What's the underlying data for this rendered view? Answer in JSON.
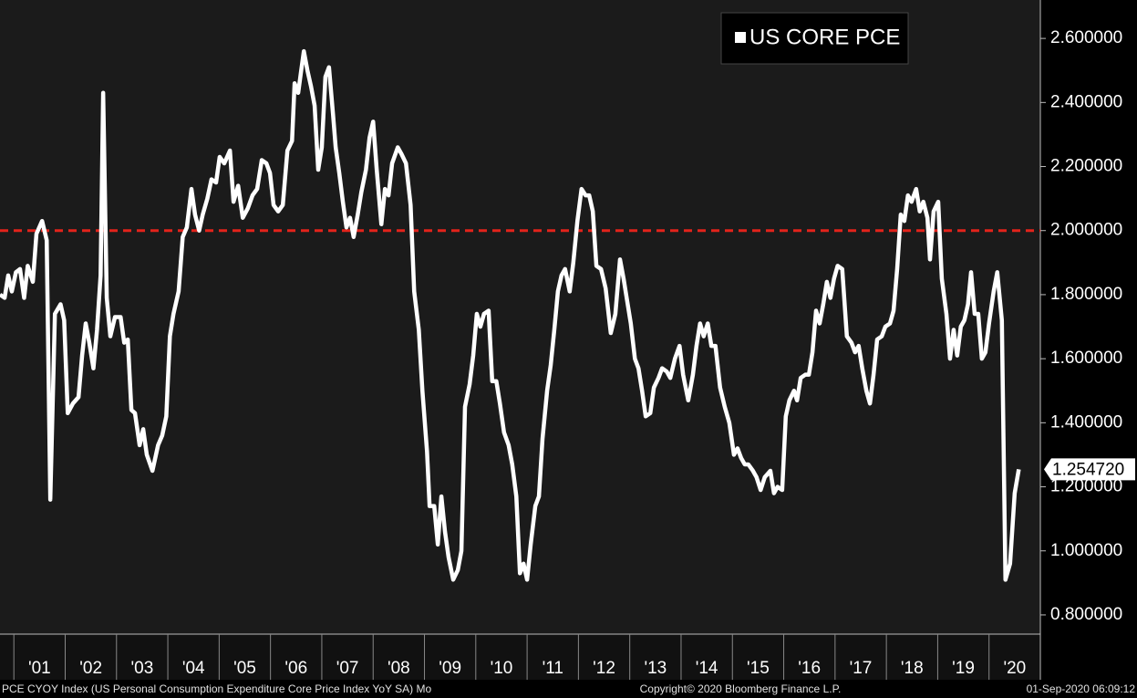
{
  "chart_data": {
    "type": "line",
    "legend_label": "US CORE PCE",
    "x": [
      2000.73,
      2000.82,
      2000.89,
      2000.96,
      2001.04,
      2001.12,
      2001.2,
      2001.27,
      2001.37,
      2001.44,
      2001.55,
      2001.64,
      2001.71,
      2001.8,
      2001.91,
      2001.98,
      2002.05,
      2002.15,
      2002.26,
      2002.33,
      2002.4,
      2002.47,
      2002.55,
      2002.62,
      2002.69,
      2002.74,
      2002.81,
      2002.88,
      2002.97,
      2003.08,
      2003.15,
      2003.22,
      2003.29,
      2003.36,
      2003.45,
      2003.52,
      2003.59,
      2003.7,
      2003.81,
      2003.89,
      2003.97,
      2004.04,
      2004.11,
      2004.21,
      2004.29,
      2004.37,
      2004.46,
      2004.53,
      2004.61,
      2004.68,
      2004.77,
      2004.85,
      2004.94,
      2005.01,
      2005.1,
      2005.21,
      2005.28,
      2005.37,
      2005.46,
      2005.56,
      2005.65,
      2005.74,
      2005.83,
      2005.92,
      2005.99,
      2006.06,
      2006.15,
      2006.24,
      2006.33,
      2006.42,
      2006.47,
      2006.54,
      2006.59,
      2006.65,
      2006.72,
      2006.79,
      2006.86,
      2006.93,
      2007.0,
      2007.07,
      2007.14,
      2007.22,
      2007.27,
      2007.34,
      2007.41,
      2007.48,
      2007.55,
      2007.62,
      2007.7,
      2007.77,
      2007.86,
      2007.93,
      2008.0,
      2008.07,
      2008.16,
      2008.23,
      2008.3,
      2008.37,
      2008.48,
      2008.55,
      2008.64,
      2008.73,
      2008.8,
      2008.89,
      2008.96,
      2009.05,
      2009.1,
      2009.19,
      2009.26,
      2009.33,
      2009.4,
      2009.47,
      2009.56,
      2009.65,
      2009.72,
      2009.79,
      2009.88,
      2009.95,
      2010.02,
      2010.09,
      2010.16,
      2010.25,
      2010.32,
      2010.4,
      2010.47,
      2010.55,
      2010.64,
      2010.71,
      2010.79,
      2010.86,
      2010.93,
      2011.0,
      2011.07,
      2011.16,
      2011.23,
      2011.3,
      2011.39,
      2011.46,
      2011.53,
      2011.6,
      2011.67,
      2011.74,
      2011.83,
      2011.9,
      2011.98,
      2012.06,
      2012.14,
      2012.21,
      2012.28,
      2012.35,
      2012.44,
      2012.53,
      2012.63,
      2012.72,
      2012.81,
      2012.88,
      2012.95,
      2013.02,
      2013.1,
      2013.17,
      2013.24,
      2013.31,
      2013.4,
      2013.47,
      2013.56,
      2013.63,
      2013.72,
      2013.79,
      2013.88,
      2013.97,
      2014.04,
      2014.14,
      2014.23,
      2014.3,
      2014.37,
      2014.44,
      2014.52,
      2014.59,
      2014.67,
      2014.76,
      2014.85,
      2014.94,
      2015.03,
      2015.1,
      2015.17,
      2015.24,
      2015.31,
      2015.4,
      2015.47,
      2015.55,
      2015.63,
      2015.74,
      2015.81,
      2015.88,
      2015.97,
      2016.04,
      2016.11,
      2016.2,
      2016.26,
      2016.33,
      2016.42,
      2016.49,
      2016.56,
      2016.63,
      2016.7,
      2016.77,
      2016.84,
      2016.91,
      2016.98,
      2017.05,
      2017.14,
      2017.23,
      2017.32,
      2017.39,
      2017.46,
      2017.53,
      2017.61,
      2017.68,
      2017.75,
      2017.82,
      2017.91,
      2017.98,
      2018.07,
      2018.14,
      2018.21,
      2018.28,
      2018.35,
      2018.42,
      2018.49,
      2018.58,
      2018.65,
      2018.72,
      2018.8,
      2018.85,
      2018.92,
      2019.01,
      2019.08,
      2019.17,
      2019.24,
      2019.31,
      2019.38,
      2019.45,
      2019.52,
      2019.59,
      2019.65,
      2019.72,
      2019.79,
      2019.86,
      2019.93,
      2020.0,
      2020.09,
      2020.16,
      2020.25,
      2020.32,
      2020.41,
      2020.5,
      2020.58
    ],
    "series": [
      {
        "name": "US CORE PCE",
        "color": "#ffffff",
        "values": [
          1.8,
          1.79,
          1.86,
          1.81,
          1.87,
          1.88,
          1.79,
          1.89,
          1.84,
          1.99,
          2.03,
          1.97,
          1.16,
          1.74,
          1.77,
          1.72,
          1.43,
          1.46,
          1.48,
          1.61,
          1.71,
          1.65,
          1.57,
          1.69,
          1.86,
          2.43,
          1.79,
          1.67,
          1.73,
          1.73,
          1.65,
          1.66,
          1.44,
          1.43,
          1.33,
          1.38,
          1.3,
          1.25,
          1.33,
          1.36,
          1.42,
          1.67,
          1.74,
          1.81,
          1.98,
          2.01,
          2.13,
          2.05,
          2.0,
          2.05,
          2.1,
          2.16,
          2.15,
          2.23,
          2.21,
          2.25,
          2.09,
          2.14,
          2.04,
          2.07,
          2.11,
          2.13,
          2.22,
          2.21,
          2.18,
          2.08,
          2.06,
          2.08,
          2.25,
          2.28,
          2.46,
          2.43,
          2.49,
          2.56,
          2.5,
          2.45,
          2.39,
          2.19,
          2.26,
          2.48,
          2.51,
          2.36,
          2.26,
          2.18,
          2.09,
          2.01,
          2.04,
          1.98,
          2.05,
          2.12,
          2.19,
          2.29,
          2.34,
          2.19,
          2.02,
          2.13,
          2.11,
          2.21,
          2.26,
          2.24,
          2.21,
          2.08,
          1.81,
          1.69,
          1.5,
          1.31,
          1.14,
          1.14,
          1.02,
          1.17,
          1.06,
          0.98,
          0.91,
          0.94,
          1.0,
          1.45,
          1.52,
          1.61,
          1.74,
          1.7,
          1.74,
          1.75,
          1.53,
          1.53,
          1.46,
          1.37,
          1.33,
          1.27,
          1.17,
          0.93,
          0.96,
          0.91,
          1.02,
          1.14,
          1.17,
          1.35,
          1.5,
          1.58,
          1.69,
          1.81,
          1.86,
          1.88,
          1.81,
          1.9,
          2.03,
          2.13,
          2.11,
          2.11,
          2.06,
          1.89,
          1.88,
          1.82,
          1.68,
          1.74,
          1.91,
          1.85,
          1.78,
          1.71,
          1.6,
          1.57,
          1.5,
          1.42,
          1.43,
          1.51,
          1.54,
          1.57,
          1.56,
          1.54,
          1.6,
          1.64,
          1.55,
          1.47,
          1.55,
          1.64,
          1.71,
          1.67,
          1.71,
          1.64,
          1.64,
          1.51,
          1.45,
          1.4,
          1.3,
          1.32,
          1.29,
          1.27,
          1.27,
          1.25,
          1.23,
          1.19,
          1.23,
          1.25,
          1.18,
          1.2,
          1.19,
          1.42,
          1.47,
          1.5,
          1.47,
          1.54,
          1.55,
          1.55,
          1.62,
          1.75,
          1.71,
          1.77,
          1.84,
          1.79,
          1.85,
          1.89,
          1.88,
          1.67,
          1.65,
          1.62,
          1.64,
          1.57,
          1.5,
          1.46,
          1.55,
          1.66,
          1.67,
          1.7,
          1.71,
          1.75,
          1.88,
          2.05,
          2.03,
          2.11,
          2.09,
          2.13,
          2.06,
          2.09,
          2.04,
          1.91,
          2.06,
          2.09,
          1.85,
          1.74,
          1.6,
          1.69,
          1.61,
          1.7,
          1.72,
          1.77,
          1.87,
          1.74,
          1.74,
          1.6,
          1.62,
          1.71,
          1.81,
          1.87,
          1.72,
          0.91,
          0.96,
          1.18,
          1.25472
        ]
      }
    ],
    "last_value": {
      "value": 1.25472,
      "label": "1.254720"
    },
    "reference_line": {
      "value": 2,
      "color": "#e3231b"
    },
    "xlim": [
      2000.73,
      2021
    ],
    "xticks": [
      {
        "value": 2001,
        "label": "'01"
      },
      {
        "value": 2002,
        "label": "'02"
      },
      {
        "value": 2003,
        "label": "'03"
      },
      {
        "value": 2004,
        "label": "'04"
      },
      {
        "value": 2005,
        "label": "'05"
      },
      {
        "value": 2006,
        "label": "'06"
      },
      {
        "value": 2007,
        "label": "'07"
      },
      {
        "value": 2008,
        "label": "'08"
      },
      {
        "value": 2009,
        "label": "'09"
      },
      {
        "value": 2010,
        "label": "'10"
      },
      {
        "value": 2011,
        "label": "'11"
      },
      {
        "value": 2012,
        "label": "'12"
      },
      {
        "value": 2013,
        "label": "'13"
      },
      {
        "value": 2014,
        "label": "'14"
      },
      {
        "value": 2015,
        "label": "'15"
      },
      {
        "value": 2016,
        "label": "'16"
      },
      {
        "value": 2017,
        "label": "'17"
      },
      {
        "value": 2018,
        "label": "'18"
      },
      {
        "value": 2019,
        "label": "'19"
      },
      {
        "value": 2020,
        "label": "'20"
      }
    ],
    "ylim": [
      0.74,
      2.72
    ],
    "yticks": [
      {
        "value": 0.8,
        "label": "0.800000"
      },
      {
        "value": 1.0,
        "label": "1.000000"
      },
      {
        "value": 1.2,
        "label": "1.200000"
      },
      {
        "value": 1.4,
        "label": "1.400000"
      },
      {
        "value": 1.6,
        "label": "1.600000"
      },
      {
        "value": 1.8,
        "label": "1.800000"
      },
      {
        "value": 2.0,
        "label": "2.000000"
      },
      {
        "value": 2.2,
        "label": "2.200000"
      },
      {
        "value": 2.4,
        "label": "2.400000"
      },
      {
        "value": 2.6,
        "label": "2.600000"
      }
    ],
    "footer_left": "PCE CYOY Index (US Personal Consumption Expenditure Core Price Index YoY SA)  Mo",
    "footer_center": "Copyright© 2020 Bloomberg Finance L.P.",
    "footer_right": "01-Sep-2020 06:09:12"
  }
}
